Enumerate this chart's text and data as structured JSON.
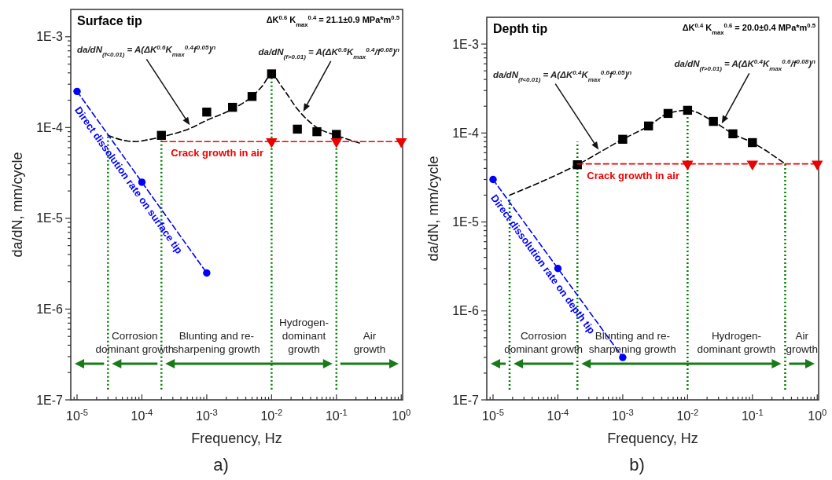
{
  "chart_data": [
    {
      "type": "scatter",
      "title": "Surface tip",
      "xlabel": "Frequency, Hz",
      "ylabel": "da/dN, mm/cycle",
      "log": "xy",
      "xlim": [
        8e-06,
        1.05
      ],
      "ylim": [
        1e-07,
        0.002
      ],
      "xticks": [
        {
          "value": 9e-06,
          "label": null
        },
        {
          "value": 1e-05,
          "label": "10$^{-5}$"
        },
        {
          "value": 2e-05,
          "label": null
        },
        {
          "value": 3e-05,
          "label": null
        },
        {
          "value": 4e-05,
          "label": null
        },
        {
          "value": 5e-05,
          "label": null
        },
        {
          "value": 6e-05,
          "label": null
        },
        {
          "value": 7e-05,
          "label": null
        },
        {
          "value": 8e-05,
          "label": null
        },
        {
          "value": 9e-05,
          "label": null
        },
        {
          "value": 0.0001,
          "label": "10$^{-4}$"
        },
        {
          "value": 0.0002,
          "label": null
        },
        {
          "value": 0.0003,
          "label": null
        },
        {
          "value": 0.0004,
          "label": null
        },
        {
          "value": 0.0005,
          "label": null
        },
        {
          "value": 0.0006,
          "label": null
        },
        {
          "value": 0.0007,
          "label": null
        },
        {
          "value": 0.0008,
          "label": null
        },
        {
          "value": 0.0009,
          "label": null
        },
        {
          "value": 0.001,
          "label": "10$^{-3}$"
        },
        {
          "value": 0.002,
          "label": null
        },
        {
          "value": 0.003,
          "label": null
        },
        {
          "value": 0.004,
          "label": null
        },
        {
          "value": 0.005,
          "label": null
        },
        {
          "value": 0.006,
          "label": null
        },
        {
          "value": 0.007,
          "label": null
        },
        {
          "value": 0.008,
          "label": null
        },
        {
          "value": 0.009,
          "label": null
        },
        {
          "value": 0.01,
          "label": "10$^{-2}$"
        },
        {
          "value": 0.02,
          "label": null
        },
        {
          "value": 0.03,
          "label": null
        },
        {
          "value": 0.04,
          "label": null
        },
        {
          "value": 0.05,
          "label": null
        },
        {
          "value": 0.06,
          "label": null
        },
        {
          "value": 0.07,
          "label": null
        },
        {
          "value": 0.08,
          "label": null
        },
        {
          "value": 0.09,
          "label": null
        },
        {
          "value": 0.1,
          "label": "10$^{-1}$"
        },
        {
          "value": 0.2,
          "label": null
        },
        {
          "value": 0.3,
          "label": null
        },
        {
          "value": 0.4,
          "label": null
        },
        {
          "value": 0.5,
          "label": null
        },
        {
          "value": 0.6,
          "label": null
        },
        {
          "value": 0.7,
          "label": null
        },
        {
          "value": 0.8,
          "label": null
        },
        {
          "value": 0.9,
          "label": null
        },
        {
          "value": 1,
          "label": "10$^{0}$"
        }
      ],
      "yticks": [
        {
          "value": 1e-07,
          "label": "1E-7"
        },
        {
          "value": 2e-07,
          "label": null
        },
        {
          "value": 3e-07,
          "label": null
        },
        {
          "value": 4e-07,
          "label": null
        },
        {
          "value": 5e-07,
          "label": null
        },
        {
          "value": 6e-07,
          "label": null
        },
        {
          "value": 7e-07,
          "label": null
        },
        {
          "value": 8e-07,
          "label": null
        },
        {
          "value": 9e-07,
          "label": null
        },
        {
          "value": 1e-06,
          "label": "1E-6"
        },
        {
          "value": 2e-06,
          "label": null
        },
        {
          "value": 3e-06,
          "label": null
        },
        {
          "value": 4e-06,
          "label": null
        },
        {
          "value": 5e-06,
          "label": null
        },
        {
          "value": 6e-06,
          "label": null
        },
        {
          "value": 7e-06,
          "label": null
        },
        {
          "value": 8e-06,
          "label": null
        },
        {
          "value": 9e-06,
          "label": null
        },
        {
          "value": 1e-05,
          "label": "1E-5"
        },
        {
          "value": 2e-05,
          "label": null
        },
        {
          "value": 3e-05,
          "label": null
        },
        {
          "value": 4e-05,
          "label": null
        },
        {
          "value": 5e-05,
          "label": null
        },
        {
          "value": 6e-05,
          "label": null
        },
        {
          "value": 7e-05,
          "label": null
        },
        {
          "value": 8e-05,
          "label": null
        },
        {
          "value": 9e-05,
          "label": null
        },
        {
          "value": 0.0001,
          "label": "1E-4"
        },
        {
          "value": 0.0002,
          "label": null
        },
        {
          "value": 0.0003,
          "label": null
        },
        {
          "value": 0.0004,
          "label": null
        },
        {
          "value": 0.0005,
          "label": null
        },
        {
          "value": 0.0006,
          "label": null
        },
        {
          "value": 0.0007,
          "label": null
        },
        {
          "value": 0.0008,
          "label": null
        },
        {
          "value": 0.0009,
          "label": null
        },
        {
          "value": 0.001,
          "label": "1E-3"
        }
      ],
      "series": [
        {
          "type": "line",
          "x": [
            3e-05,
            3e-05
          ],
          "values": [
            1.3e-07,
            8.2e-05
          ],
          "color": "#008000",
          "line_style": "dotted",
          "marker": "none"
        },
        {
          "type": "line",
          "x": [
            0.0002,
            0.0002
          ],
          "values": [
            1.3e-07,
            8e-05
          ],
          "color": "#008000",
          "line_style": "dotted",
          "marker": "none"
        },
        {
          "type": "line",
          "x": [
            0.01,
            0.01
          ],
          "values": [
            1.3e-07,
            0.00039
          ],
          "color": "#008000",
          "line_style": "dotted",
          "marker": "none"
        },
        {
          "type": "line",
          "x": [
            0.1,
            0.1
          ],
          "values": [
            1.3e-07,
            8.2e-05
          ],
          "color": "#008000",
          "line_style": "dotted",
          "marker": "none"
        },
        {
          "type": "line",
          "x": [
            3e-05,
            4e-05,
            6e-05,
            8e-05,
            0.00012,
            0.0002,
            0.0005,
            0.001,
            0.0025,
            0.005,
            0.007,
            0.01,
            0.015,
            0.025,
            0.05,
            0.1,
            0.25
          ],
          "values": [
            8.2e-05,
            7.6e-05,
            7.1e-05,
            7e-05,
            7.3e-05,
            7.9e-05,
            9.5e-05,
            0.00012,
            0.00016,
            0.00022,
            0.00028,
            0.00038,
            0.00027,
            0.00016,
            0.0001,
            8.2e-05,
            6.6e-05
          ],
          "color": "#000000",
          "line_style": "dashed",
          "marker": "none"
        },
        {
          "type": "scatter",
          "x": [
            0.0002,
            0.001,
            0.0025,
            0.005,
            0.01,
            0.025,
            0.05,
            0.1
          ],
          "values": [
            8.2e-05,
            0.000148,
            0.000167,
            0.00022,
            0.00039,
            9.6e-05,
            9e-05,
            8.4e-05
          ],
          "color": "#000000",
          "marker": "square"
        },
        {
          "name": "Crack growth in air",
          "type": "line",
          "x": [
            0.0002,
            1
          ],
          "values": [
            7e-05,
            7e-05
          ],
          "color": "#ee0000",
          "line_style": "dashed",
          "marker": "none"
        },
        {
          "type": "scatter",
          "x": [
            0.01,
            0.1,
            1
          ],
          "values": [
            7e-05,
            7e-05,
            7e-05
          ],
          "color": "#ee0000",
          "marker": "triangle"
        },
        {
          "name": "Direct dissolution rate on surface tip",
          "type": "line",
          "x": [
            1e-05,
            0.0001,
            0.001
          ],
          "values": [
            0.00025,
            2.5e-05,
            2.5e-06
          ],
          "color": "#0000ff",
          "line_style": "dashed",
          "marker": "circle"
        }
      ],
      "annotations": [
        "da/dN$_{(f<0.01)}$ = A(ΔK$^{0.6}$K$_{max}$$^{0.4}$f$^{0.05}$)$^{n}$",
        "da/dN$_{(f>0.01)}$ = A(ΔK$^{0.6}$K$_{max}$$^{0.4}$/f$^{0.08}$)$^{n}$",
        "ΔK$^{0.6}$ K$_{max}$$^{0.4}$ = 21.1±0.9 MPa*m$^{0.5}$",
        "Corrosion\ndominant growth",
        "Blunting and re-\nsharpening growth",
        "Hydrogen-\ndominant\ngrowth",
        "Air\ngrowth",
        "a)"
      ]
    },
    {
      "type": "scatter",
      "title": "Depth tip",
      "xlabel": "Frequency, Hz",
      "ylabel": "da/dN, mm/cycle",
      "log": "xy",
      "xlim": [
        8e-06,
        1.05
      ],
      "ylim": [
        1e-07,
        0.002
      ],
      "xticks": [
        {
          "value": 9e-06,
          "label": null
        },
        {
          "value": 1e-05,
          "label": "10$^{-5}$"
        },
        {
          "value": 2e-05,
          "label": null
        },
        {
          "value": 3e-05,
          "label": null
        },
        {
          "value": 4e-05,
          "label": null
        },
        {
          "value": 5e-05,
          "label": null
        },
        {
          "value": 6e-05,
          "label": null
        },
        {
          "value": 7e-05,
          "label": null
        },
        {
          "value": 8e-05,
          "label": null
        },
        {
          "value": 9e-05,
          "label": null
        },
        {
          "value": 0.0001,
          "label": "10$^{-4}$"
        },
        {
          "value": 0.0002,
          "label": null
        },
        {
          "value": 0.0003,
          "label": null
        },
        {
          "value": 0.0004,
          "label": null
        },
        {
          "value": 0.0005,
          "label": null
        },
        {
          "value": 0.0006,
          "label": null
        },
        {
          "value": 0.0007,
          "label": null
        },
        {
          "value": 0.0008,
          "label": null
        },
        {
          "value": 0.0009,
          "label": null
        },
        {
          "value": 0.001,
          "label": "10$^{-3}$"
        },
        {
          "value": 0.002,
          "label": null
        },
        {
          "value": 0.003,
          "label": null
        },
        {
          "value": 0.004,
          "label": null
        },
        {
          "value": 0.005,
          "label": null
        },
        {
          "value": 0.006,
          "label": null
        },
        {
          "value": 0.007,
          "label": null
        },
        {
          "value": 0.008,
          "label": null
        },
        {
          "value": 0.009,
          "label": null
        },
        {
          "value": 0.01,
          "label": "10$^{-2}$"
        },
        {
          "value": 0.02,
          "label": null
        },
        {
          "value": 0.03,
          "label": null
        },
        {
          "value": 0.04,
          "label": null
        },
        {
          "value": 0.05,
          "label": null
        },
        {
          "value": 0.06,
          "label": null
        },
        {
          "value": 0.07,
          "label": null
        },
        {
          "value": 0.08,
          "label": null
        },
        {
          "value": 0.09,
          "label": null
        },
        {
          "value": 0.1,
          "label": "10$^{-1}$"
        },
        {
          "value": 0.2,
          "label": null
        },
        {
          "value": 0.3,
          "label": null
        },
        {
          "value": 0.4,
          "label": null
        },
        {
          "value": 0.5,
          "label": null
        },
        {
          "value": 0.6,
          "label": null
        },
        {
          "value": 0.7,
          "label": null
        },
        {
          "value": 0.8,
          "label": null
        },
        {
          "value": 0.9,
          "label": null
        },
        {
          "value": 1,
          "label": "10$^{0}$"
        }
      ],
      "yticks": [
        {
          "value": 1e-07,
          "label": "1E-7"
        },
        {
          "value": 2e-07,
          "label": null
        },
        {
          "value": 3e-07,
          "label": null
        },
        {
          "value": 4e-07,
          "label": null
        },
        {
          "value": 5e-07,
          "label": null
        },
        {
          "value": 6e-07,
          "label": null
        },
        {
          "value": 7e-07,
          "label": null
        },
        {
          "value": 8e-07,
          "label": null
        },
        {
          "value": 9e-07,
          "label": null
        },
        {
          "value": 1e-06,
          "label": "1E-6"
        },
        {
          "value": 2e-06,
          "label": null
        },
        {
          "value": 3e-06,
          "label": null
        },
        {
          "value": 4e-06,
          "label": null
        },
        {
          "value": 5e-06,
          "label": null
        },
        {
          "value": 6e-06,
          "label": null
        },
        {
          "value": 7e-06,
          "label": null
        },
        {
          "value": 8e-06,
          "label": null
        },
        {
          "value": 9e-06,
          "label": null
        },
        {
          "value": 1e-05,
          "label": "1E-5"
        },
        {
          "value": 2e-05,
          "label": null
        },
        {
          "value": 3e-05,
          "label": null
        },
        {
          "value": 4e-05,
          "label": null
        },
        {
          "value": 5e-05,
          "label": null
        },
        {
          "value": 6e-05,
          "label": null
        },
        {
          "value": 7e-05,
          "label": null
        },
        {
          "value": 8e-05,
          "label": null
        },
        {
          "value": 9e-05,
          "label": null
        },
        {
          "value": 0.0001,
          "label": "1E-4"
        },
        {
          "value": 0.0002,
          "label": null
        },
        {
          "value": 0.0003,
          "label": null
        },
        {
          "value": 0.0004,
          "label": null
        },
        {
          "value": 0.0005,
          "label": null
        },
        {
          "value": 0.0006,
          "label": null
        },
        {
          "value": 0.0007,
          "label": null
        },
        {
          "value": 0.0008,
          "label": null
        },
        {
          "value": 0.0009,
          "label": null
        },
        {
          "value": 0.001,
          "label": "1E-3"
        }
      ],
      "series": [
        {
          "type": "line",
          "x": [
            1.8e-05,
            1.8e-05
          ],
          "values": [
            1.3e-07,
            1.8e-05
          ],
          "color": "#008000",
          "line_style": "dotted",
          "marker": "none"
        },
        {
          "type": "line",
          "x": [
            0.0002,
            0.0002
          ],
          "values": [
            1.3e-07,
            8e-05
          ],
          "color": "#008000",
          "line_style": "dotted",
          "marker": "none"
        },
        {
          "type": "line",
          "x": [
            0.01,
            0.01
          ],
          "values": [
            1.3e-07,
            0.00018
          ],
          "color": "#008000",
          "line_style": "dotted",
          "marker": "none"
        },
        {
          "type": "line",
          "x": [
            0.32,
            0.32
          ],
          "values": [
            1.3e-07,
            4.5e-05
          ],
          "color": "#008000",
          "line_style": "dotted",
          "marker": "none"
        },
        {
          "type": "line",
          "x": [
            1.8e-05,
            0.0002,
            0.001,
            0.0025,
            0.005,
            0.01,
            0.025,
            0.05,
            0.1,
            0.32
          ],
          "values": [
            2e-05,
            4.4e-05,
            8.5e-05,
            0.00012,
            0.000166,
            0.00018,
            0.000135,
            9.8e-05,
            7.8e-05,
            4.5e-05
          ],
          "color": "#000000",
          "line_style": "dashed",
          "marker": "none"
        },
        {
          "type": "scatter",
          "x": [
            0.0002,
            0.001,
            0.0025,
            0.005,
            0.01,
            0.025,
            0.05,
            0.1
          ],
          "values": [
            4.4e-05,
            8.5e-05,
            0.00012,
            0.000166,
            0.00018,
            0.000135,
            9.8e-05,
            7.8e-05
          ],
          "color": "#000000",
          "marker": "square"
        },
        {
          "name": "Crack growth in air",
          "type": "line",
          "x": [
            0.0002,
            1
          ],
          "values": [
            4.5e-05,
            4.5e-05
          ],
          "color": "#ee0000",
          "line_style": "dashed",
          "marker": "none"
        },
        {
          "type": "scatter",
          "x": [
            0.01,
            0.1,
            1
          ],
          "values": [
            4.5e-05,
            4.5e-05,
            4.5e-05
          ],
          "color": "#ee0000",
          "marker": "triangle"
        },
        {
          "name": "Direct dissolution rate on depth tip",
          "type": "line",
          "x": [
            1e-05,
            0.0001,
            0.001
          ],
          "values": [
            3e-05,
            3e-06,
            3e-07
          ],
          "color": "#0000ff",
          "line_style": "dashed",
          "marker": "circle"
        }
      ],
      "annotations": [
        "da/dN$_{(f<0.01)}$ = A(ΔK$^{0.4}$K$_{max}$$^{0.6}$f$^{0.05}$)$^{n}$",
        "da/dN$_{(f>0.01)}$ = A(ΔK$^{0.4}$K$_{max}$$^{0.6}$/f$^{0.08}$)$^{n}$",
        "ΔK$^{0.4}$ K$_{max}$$^{0.6}$ = 20.0±0.4 MPa*m$^{0.5}$",
        "Corrosion\ndominant growth",
        "Blunting and re-\nsharpening growth",
        "Hydrogen-\ndominant growth",
        "Air\ngrowth",
        "b)"
      ]
    }
  ]
}
